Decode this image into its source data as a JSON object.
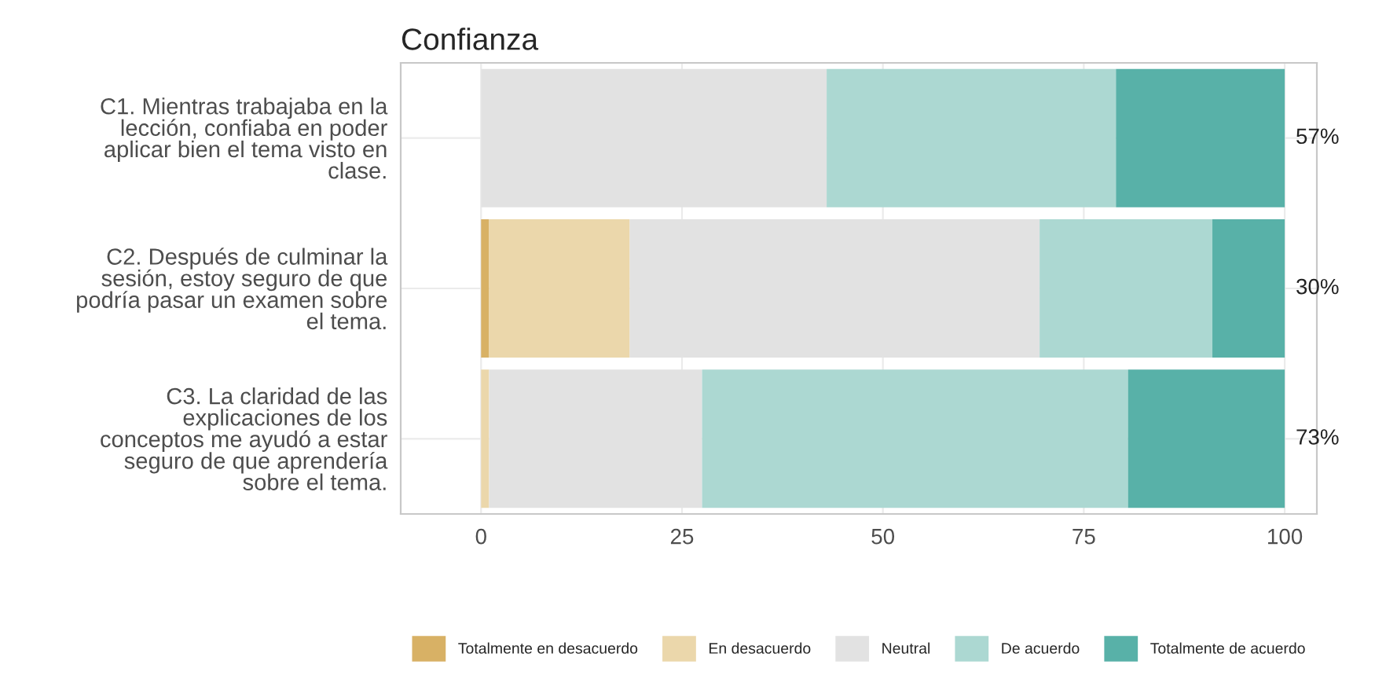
{
  "chart_data": {
    "type": "bar",
    "orientation": "horizontal",
    "stacked": true,
    "title": "Confianza",
    "categories": [
      "C1. Mientras trabajaba en la\nlección, confiaba en poder\naplicar bien el tema visto en\nclase.",
      "C2. Después de culminar la\nsesión, estoy seguro de que\npodría pasar un examen sobre\nel tema.",
      "C3. La claridad de las\nexplicaciones de los\nconceptos me ayudó a estar\nseguro de que aprendería\nsobre el tema."
    ],
    "series": [
      {
        "name": "Totalmente en desacuerdo",
        "color": "#d8b165",
        "values": [
          null,
          1,
          null
        ]
      },
      {
        "name": "En desacuerdo",
        "color": "#ebd7ab",
        "values": [
          null,
          17.5,
          1
        ]
      },
      {
        "name": "Neutral",
        "color": "#e2e2e2",
        "values": [
          43,
          51,
          26.5
        ]
      },
      {
        "name": "De acuerdo",
        "color": "#acd8d2",
        "values": [
          36,
          21.5,
          53
        ]
      },
      {
        "name": "Totalmente de acuerdo",
        "color": "#58b1a8",
        "values": [
          21,
          9,
          19.5
        ]
      }
    ],
    "annotations": [
      "57%",
      "30%",
      "73%"
    ],
    "xlim": [
      -10,
      104
    ],
    "xticks": [
      0,
      25,
      50,
      75,
      100
    ],
    "grid": true,
    "legend": "bottom"
  }
}
